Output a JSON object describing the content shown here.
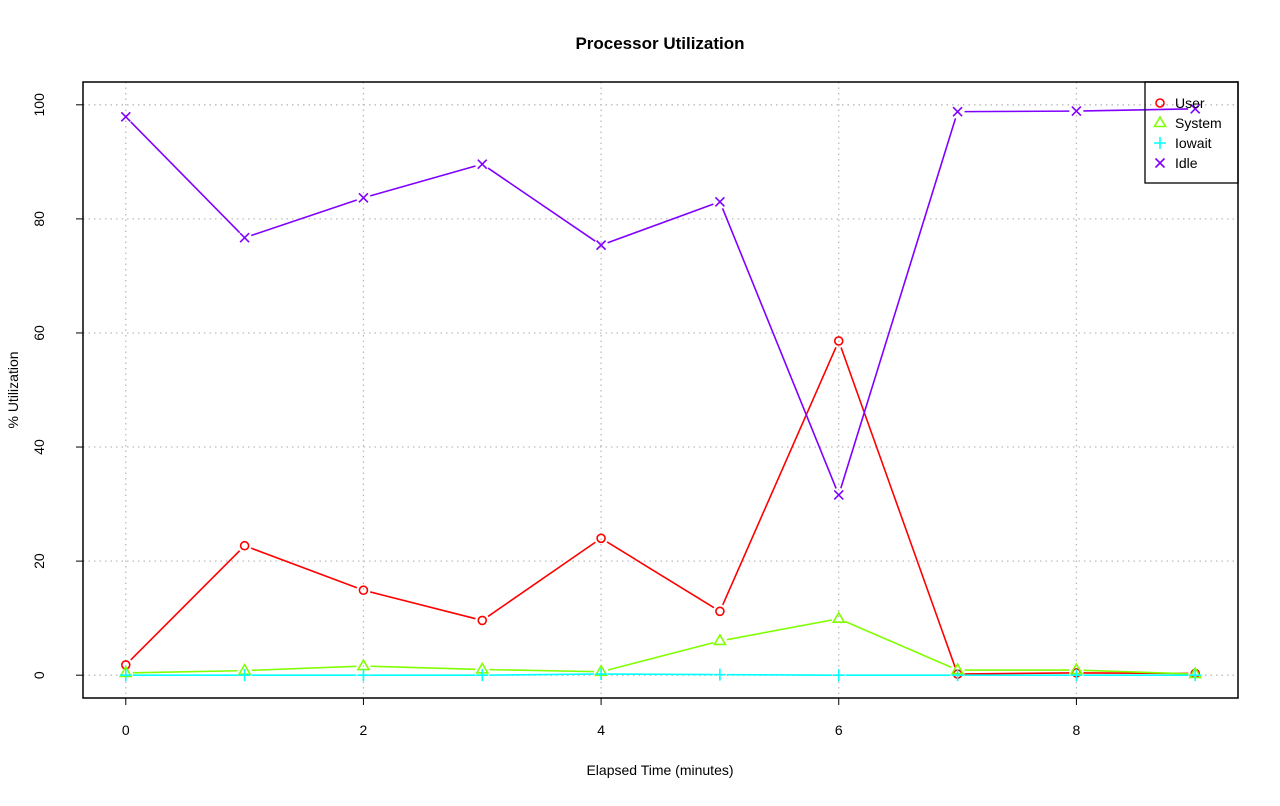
{
  "chart_data": {
    "type": "line",
    "title": "Processor Utilization",
    "xlabel": "Elapsed Time (minutes)",
    "ylabel": "% Utilization",
    "x": [
      0,
      1,
      2,
      3,
      4,
      5,
      6,
      7,
      8,
      9
    ],
    "xlim": [
      -0.36,
      9.36
    ],
    "ylim": [
      -4,
      104
    ],
    "xticks": [
      0,
      2,
      4,
      6,
      8
    ],
    "yticks": [
      0,
      20,
      40,
      60,
      80,
      100
    ],
    "grid": true,
    "legend_position": "top-right",
    "series": [
      {
        "name": "User",
        "color": "#ff0000",
        "marker": "circle",
        "values": [
          1.8,
          22.7,
          14.9,
          9.6,
          24.0,
          11.2,
          58.6,
          0.2,
          0.4,
          0.3
        ]
      },
      {
        "name": "System",
        "color": "#80ff00",
        "marker": "triangle",
        "values": [
          0.4,
          0.8,
          1.6,
          1.0,
          0.6,
          6.0,
          9.9,
          0.9,
          0.9,
          0.2
        ]
      },
      {
        "name": "Iowait",
        "color": "#00ffff",
        "marker": "plus",
        "values": [
          0.0,
          0.0,
          0.0,
          0.0,
          0.2,
          0.1,
          0.0,
          0.0,
          0.0,
          0.0
        ]
      },
      {
        "name": "Idle",
        "color": "#8000ff",
        "marker": "cross",
        "values": [
          97.9,
          76.7,
          83.7,
          89.6,
          75.4,
          83.0,
          31.6,
          98.8,
          98.9,
          99.3
        ]
      }
    ]
  }
}
